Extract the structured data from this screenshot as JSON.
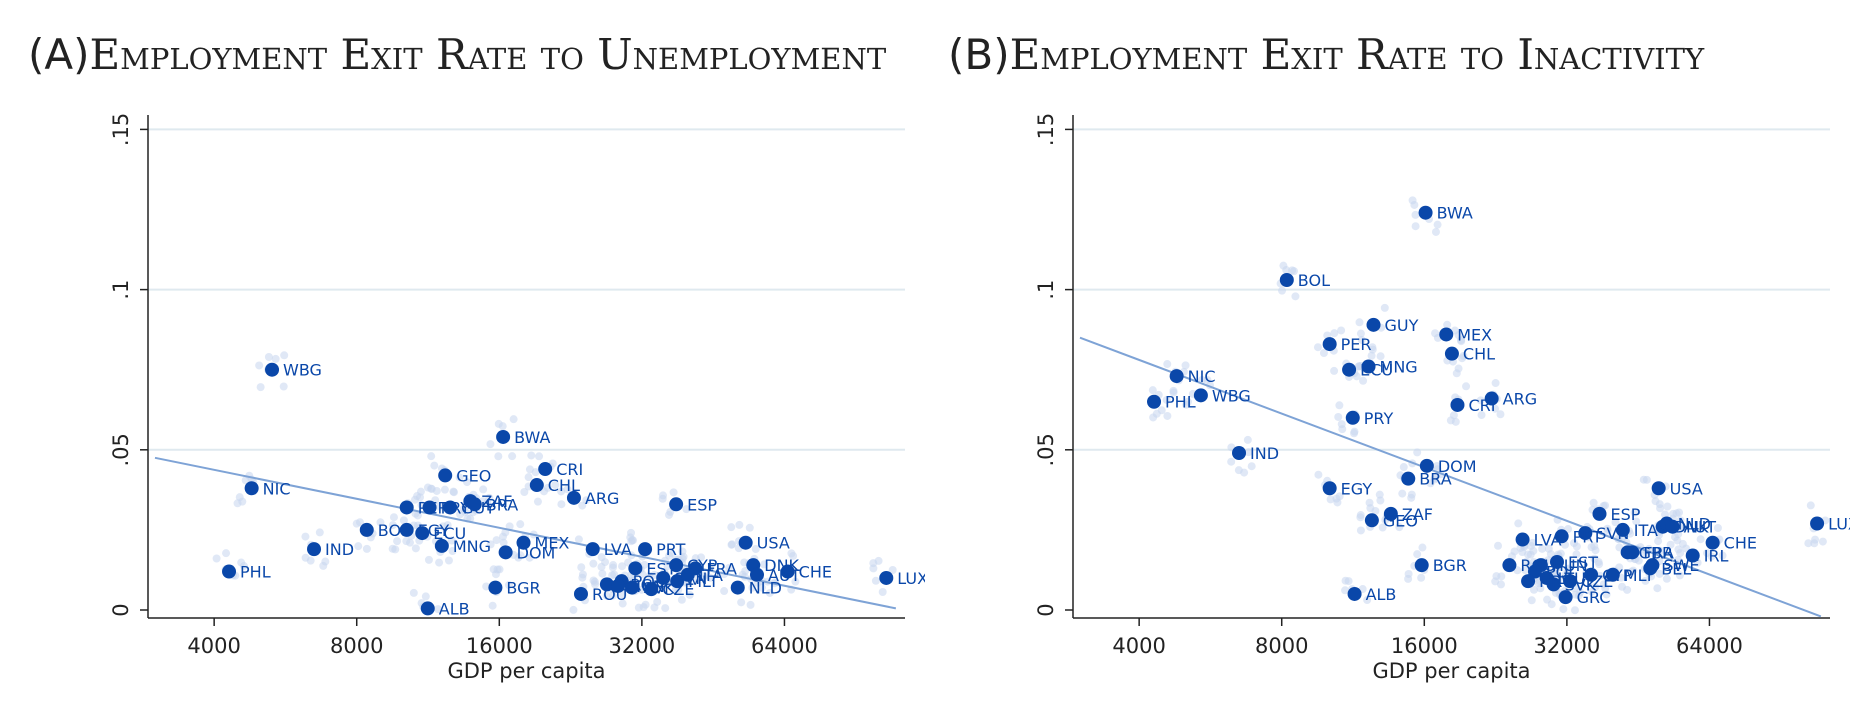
{
  "colors": {
    "marker": "#0a47a9",
    "fit_line": "#7ea3d6",
    "background_dots": "#c6d6ee",
    "grid": "#dfe9ef",
    "axis": "#222222"
  },
  "chart_data": [
    {
      "type": "scatter",
      "panel_label": "(A)",
      "title": "Employment Exit Rate to Unemployment",
      "xlabel": "GDP per capita",
      "ylabel": "",
      "x_scale": "log2",
      "xlim": [
        2900,
        115000
      ],
      "ylim": [
        0,
        0.152
      ],
      "x_ticks": [
        4000,
        8000,
        16000,
        32000,
        64000
      ],
      "x_tick_labels": [
        "4000",
        "8000",
        "16000",
        "32000",
        "64000"
      ],
      "y_ticks": [
        0,
        0.05,
        0.1,
        0.15
      ],
      "y_tick_labels": [
        "0",
        ".05",
        ".1",
        ".15"
      ],
      "grid": true,
      "fit_line": [
        [
          3000,
          0.0475
        ],
        [
          110000,
          0.0005
        ]
      ],
      "series": [
        {
          "points": [
            {
              "label": "WBG",
              "x": 5300,
              "y": 0.075
            },
            {
              "label": "NIC",
              "x": 4800,
              "y": 0.038
            },
            {
              "label": "PHL",
              "x": 4300,
              "y": 0.012
            },
            {
              "label": "IND",
              "x": 6500,
              "y": 0.019
            },
            {
              "label": "BOL",
              "x": 8400,
              "y": 0.025
            },
            {
              "label": "PER",
              "x": 10200,
              "y": 0.032
            },
            {
              "label": "EGY",
              "x": 10200,
              "y": 0.025
            },
            {
              "label": "PRY",
              "x": 11400,
              "y": 0.032
            },
            {
              "label": "ECU",
              "x": 11000,
              "y": 0.024
            },
            {
              "label": "GEO",
              "x": 12300,
              "y": 0.042
            },
            {
              "label": "MNG",
              "x": 12100,
              "y": 0.02
            },
            {
              "label": "ZAF",
              "x": 13900,
              "y": 0.034
            },
            {
              "label": "GUY",
              "x": 12600,
              "y": 0.032
            },
            {
              "label": "BRA",
              "x": 14200,
              "y": 0.033
            },
            {
              "label": "ALB",
              "x": 11300,
              "y": 0.0005
            },
            {
              "label": "BWA",
              "x": 16300,
              "y": 0.054
            },
            {
              "label": "CRI",
              "x": 20000,
              "y": 0.044
            },
            {
              "label": "CHL",
              "x": 19200,
              "y": 0.039
            },
            {
              "label": "ARG",
              "x": 23000,
              "y": 0.035
            },
            {
              "label": "MEX",
              "x": 18000,
              "y": 0.021
            },
            {
              "label": "DOM",
              "x": 16500,
              "y": 0.018
            },
            {
              "label": "BGR",
              "x": 15700,
              "y": 0.007
            },
            {
              "label": "LVA",
              "x": 25200,
              "y": 0.019
            },
            {
              "label": "ROU",
              "x": 23800,
              "y": 0.005
            },
            {
              "label": "PRT",
              "x": 32500,
              "y": 0.019
            },
            {
              "label": "ESP",
              "x": 37800,
              "y": 0.033
            },
            {
              "label": "EST",
              "x": 31000,
              "y": 0.013
            },
            {
              "label": "GRC",
              "x": 27000,
              "y": 0.008
            },
            {
              "label": "POL",
              "x": 29000,
              "y": 0.009
            },
            {
              "label": "HUN",
              "x": 28500,
              "y": 0.0075
            },
            {
              "label": "SVK",
              "x": 30500,
              "y": 0.007
            },
            {
              "label": "CZE",
              "x": 33500,
              "y": 0.0065
            },
            {
              "label": "SVN",
              "x": 35500,
              "y": 0.01
            },
            {
              "label": "MLT",
              "x": 38000,
              "y": 0.009
            },
            {
              "label": "CYP",
              "x": 37800,
              "y": 0.014
            },
            {
              "label": "FRA",
              "x": 41500,
              "y": 0.013
            },
            {
              "label": "ITA",
              "x": 40000,
              "y": 0.011
            },
            {
              "label": "USA",
              "x": 53000,
              "y": 0.021
            },
            {
              "label": "DNK",
              "x": 55000,
              "y": 0.014
            },
            {
              "label": "AUT",
              "x": 56000,
              "y": 0.011
            },
            {
              "label": "NLD",
              "x": 51000,
              "y": 0.007
            },
            {
              "label": "CHE",
              "x": 65000,
              "y": 0.012
            },
            {
              "label": "LUX",
              "x": 105000,
              "y": 0.01
            }
          ]
        }
      ]
    },
    {
      "type": "scatter",
      "panel_label": "(B)",
      "title": "Employment Exit Rate to Inactivity",
      "xlabel": "GDP per capita",
      "ylabel": "",
      "x_scale": "log2",
      "xlim": [
        2900,
        115000
      ],
      "ylim": [
        0,
        0.152
      ],
      "x_ticks": [
        4000,
        8000,
        16000,
        32000,
        64000
      ],
      "x_tick_labels": [
        "4000",
        "8000",
        "16000",
        "32000",
        "64000"
      ],
      "y_ticks": [
        0,
        0.05,
        0.1,
        0.15
      ],
      "y_tick_labels": [
        "0",
        ".05",
        ".1",
        ".15"
      ],
      "grid": true,
      "fit_line": [
        [
          3000,
          0.085
        ],
        [
          110000,
          -0.002
        ]
      ],
      "series": [
        {
          "points": [
            {
              "label": "BWA",
              "x": 16100,
              "y": 0.124
            },
            {
              "label": "BOL",
              "x": 8200,
              "y": 0.103
            },
            {
              "label": "GUY",
              "x": 12500,
              "y": 0.089
            },
            {
              "label": "MEX",
              "x": 17800,
              "y": 0.086
            },
            {
              "label": "PER",
              "x": 10100,
              "y": 0.083
            },
            {
              "label": "CHL",
              "x": 18300,
              "y": 0.08
            },
            {
              "label": "MNG",
              "x": 12200,
              "y": 0.076
            },
            {
              "label": "ECU",
              "x": 11100,
              "y": 0.075
            },
            {
              "label": "NIC",
              "x": 4800,
              "y": 0.073
            },
            {
              "label": "WBG",
              "x": 5400,
              "y": 0.067
            },
            {
              "label": "PHL",
              "x": 4300,
              "y": 0.065
            },
            {
              "label": "ARG",
              "x": 22200,
              "y": 0.066
            },
            {
              "label": "CRI",
              "x": 18800,
              "y": 0.064
            },
            {
              "label": "PRY",
              "x": 11300,
              "y": 0.06
            },
            {
              "label": "IND",
              "x": 6500,
              "y": 0.049
            },
            {
              "label": "DOM",
              "x": 16200,
              "y": 0.045
            },
            {
              "label": "BRA",
              "x": 14800,
              "y": 0.041
            },
            {
              "label": "EGY",
              "x": 10100,
              "y": 0.038
            },
            {
              "label": "ZAF",
              "x": 13600,
              "y": 0.03
            },
            {
              "label": "GEO",
              "x": 12400,
              "y": 0.028
            },
            {
              "label": "USA",
              "x": 50000,
              "y": 0.038
            },
            {
              "label": "ESP",
              "x": 37500,
              "y": 0.03
            },
            {
              "label": "DNK",
              "x": 51000,
              "y": 0.026
            },
            {
              "label": "NLD",
              "x": 52000,
              "y": 0.027
            },
            {
              "label": "AUT",
              "x": 53500,
              "y": 0.026
            },
            {
              "label": "ITA",
              "x": 42000,
              "y": 0.025
            },
            {
              "label": "SVN",
              "x": 35000,
              "y": 0.024
            },
            {
              "label": "CHE",
              "x": 65000,
              "y": 0.021
            },
            {
              "label": "LVA",
              "x": 25800,
              "y": 0.022
            },
            {
              "label": "PRT",
              "x": 31200,
              "y": 0.023
            },
            {
              "label": "IRL",
              "x": 59000,
              "y": 0.017
            },
            {
              "label": "GBR",
              "x": 43000,
              "y": 0.018
            },
            {
              "label": "FRA",
              "x": 44000,
              "y": 0.018
            },
            {
              "label": "SWE",
              "x": 48500,
              "y": 0.014
            },
            {
              "label": "BEL",
              "x": 48000,
              "y": 0.013
            },
            {
              "label": "EST",
              "x": 30500,
              "y": 0.015
            },
            {
              "label": "ROU",
              "x": 24200,
              "y": 0.014
            },
            {
              "label": "HUN",
              "x": 28200,
              "y": 0.014
            },
            {
              "label": "CYP",
              "x": 36000,
              "y": 0.011
            },
            {
              "label": "MLT",
              "x": 40000,
              "y": 0.011
            },
            {
              "label": "POL",
              "x": 27400,
              "y": 0.012
            },
            {
              "label": "LTU",
              "x": 29000,
              "y": 0.01
            },
            {
              "label": "CZE",
              "x": 32500,
              "y": 0.009
            },
            {
              "label": "SVK",
              "x": 30000,
              "y": 0.008
            },
            {
              "label": "HRV",
              "x": 26500,
              "y": 0.009
            },
            {
              "label": "BGR",
              "x": 15800,
              "y": 0.014
            },
            {
              "label": "ALB",
              "x": 11400,
              "y": 0.005
            },
            {
              "label": "GRC",
              "x": 31800,
              "y": 0.004
            },
            {
              "label": "LUX",
              "x": 108000,
              "y": 0.027
            }
          ]
        }
      ]
    }
  ]
}
